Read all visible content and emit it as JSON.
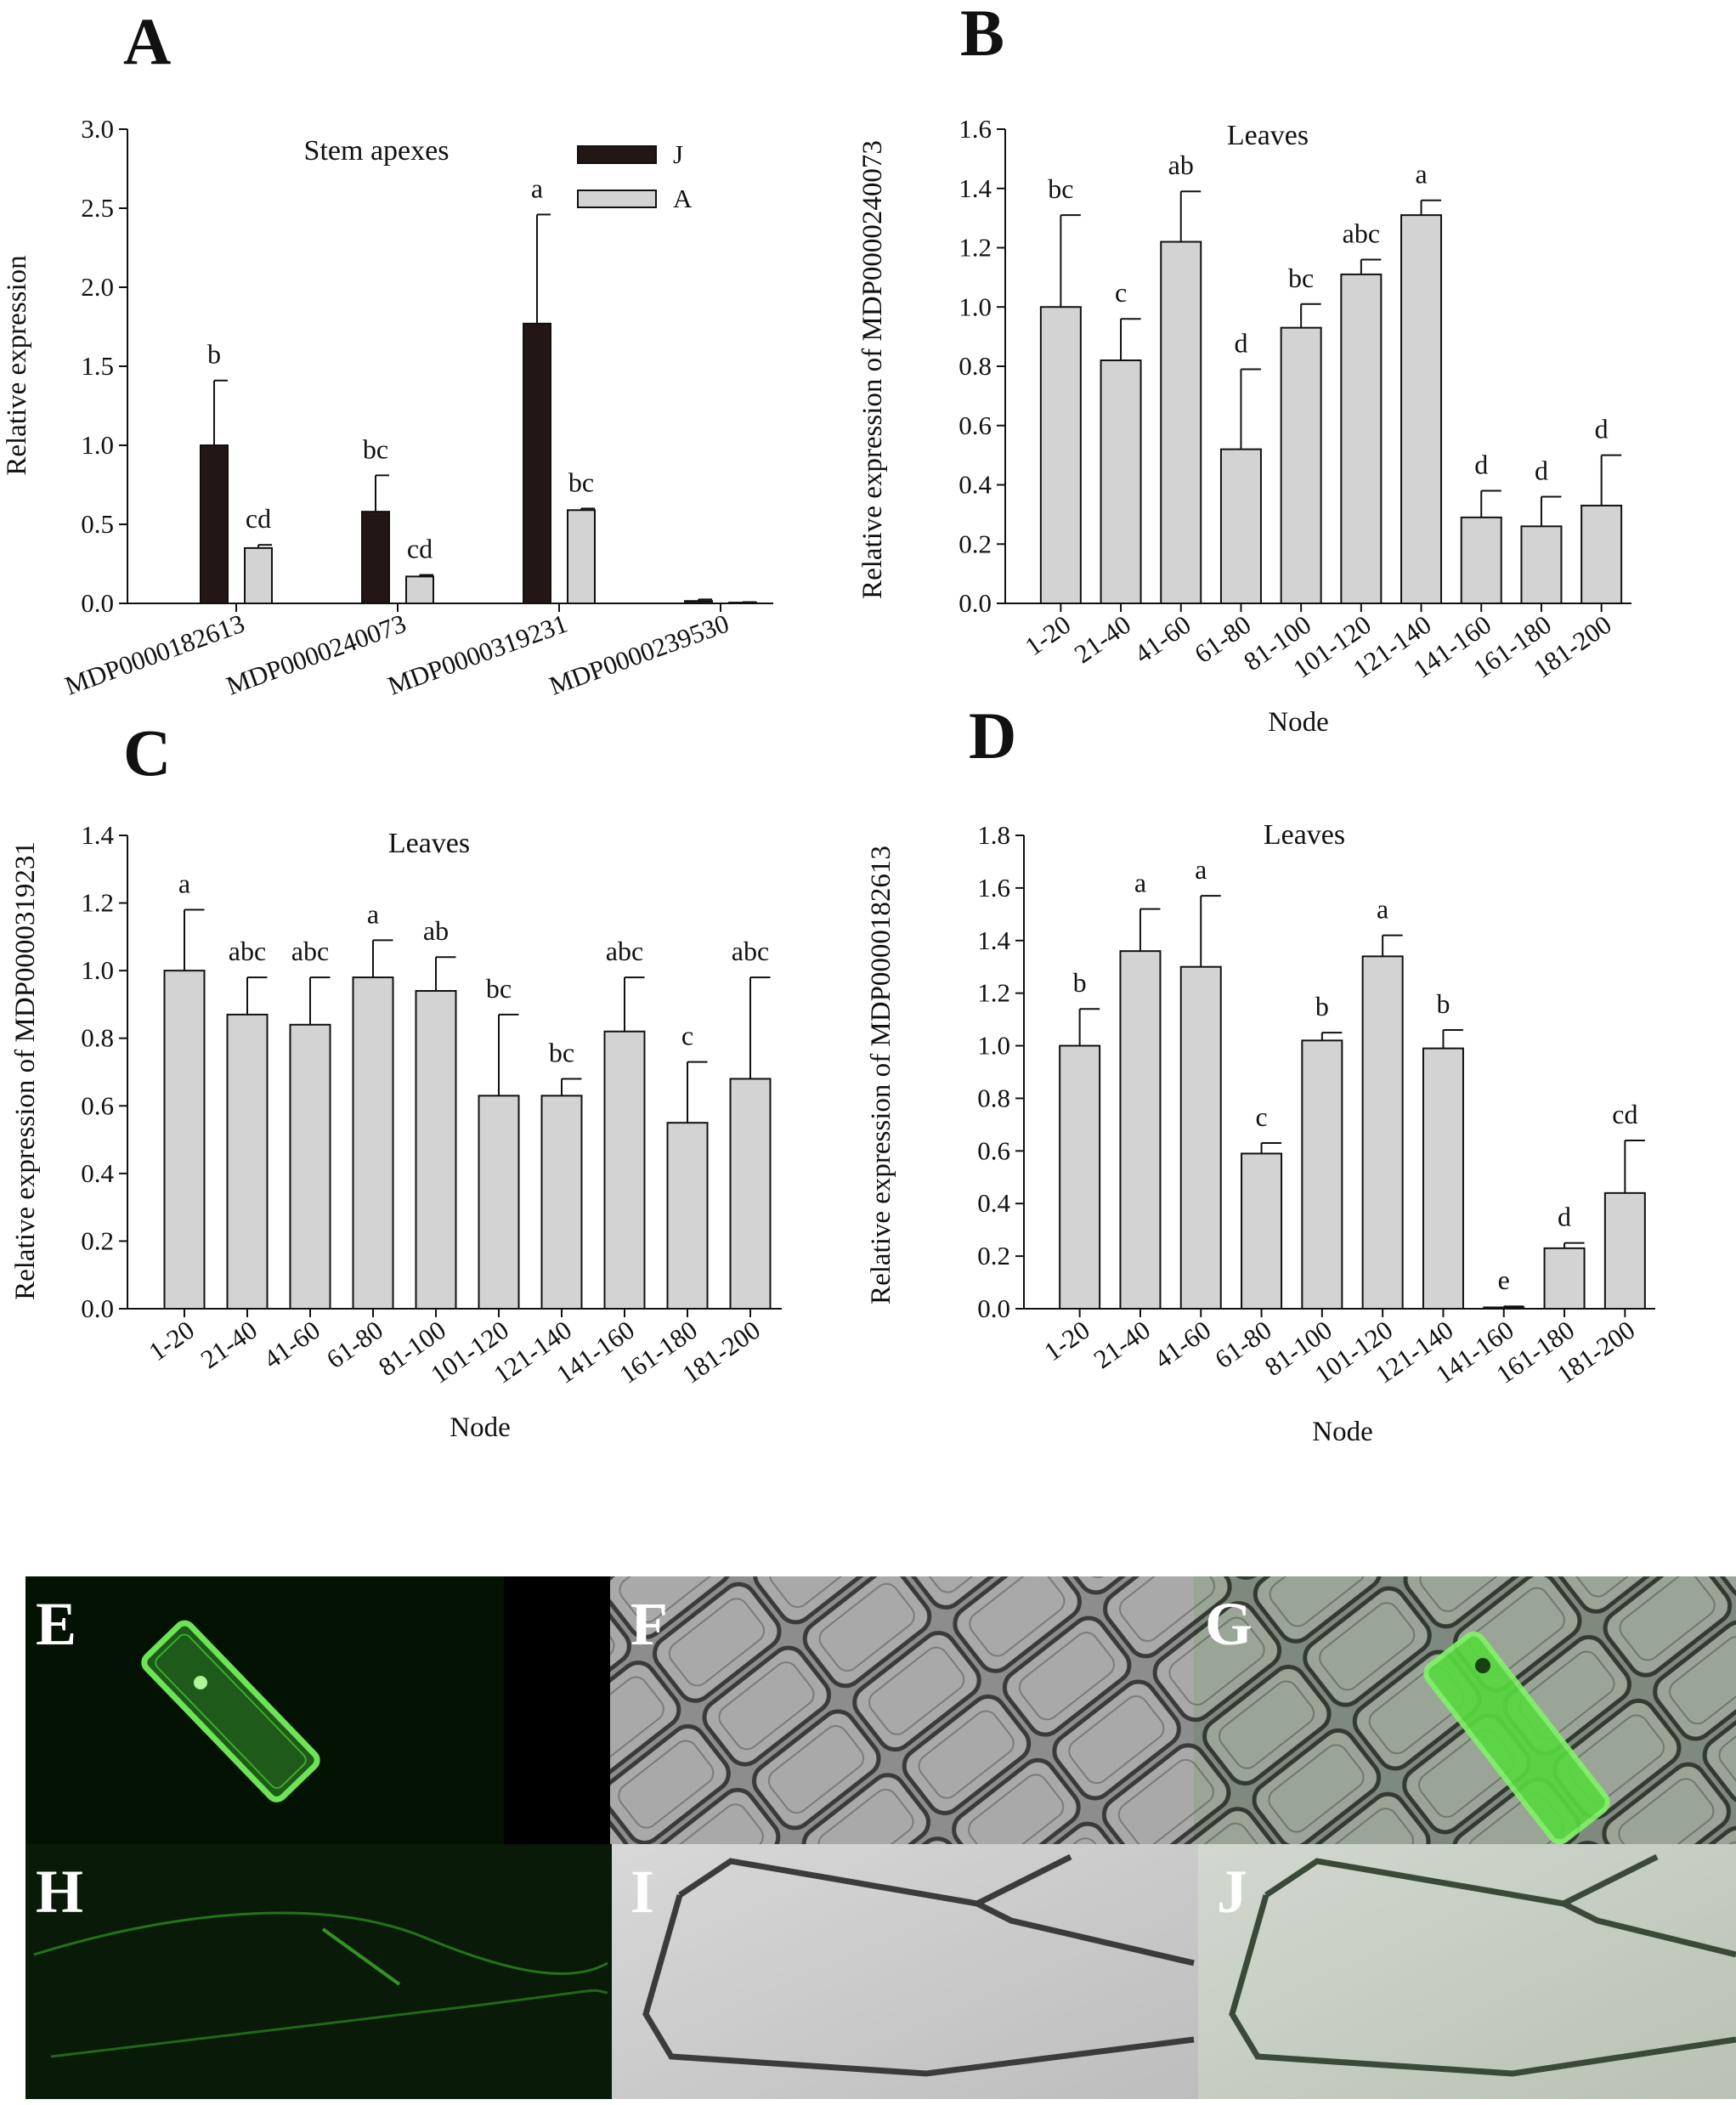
{
  "figure": {
    "panel_labels": [
      "A",
      "B",
      "C",
      "D"
    ],
    "micrograph_labels": [
      "E",
      "F",
      "G",
      "H",
      "I",
      "J"
    ]
  },
  "colors": {
    "bar_juvenile": "#221714",
    "bar_adult": "#d3d3d3",
    "bar_leaves": "#d3d3d3",
    "axis": "#111111",
    "gfp_green": "#4fd13a"
  },
  "chart_data": [
    {
      "panel": "A",
      "type": "bar",
      "title": "Stem apexes",
      "xlabel": "",
      "ylabel": "Relative expression",
      "ylim": [
        0,
        3.0
      ],
      "yticks": [
        "0.0",
        "0.5",
        "1.0",
        "1.5",
        "2.0",
        "2.5",
        "3.0"
      ],
      "categories": [
        "MDP0000182613",
        "MDP0000240073",
        "MDP0000319231",
        "MDP0000239530"
      ],
      "legend_position": "top-right",
      "series": [
        {
          "name": "J",
          "values": [
            1.0,
            0.58,
            1.77,
            0.015
          ],
          "errors": [
            0.41,
            0.23,
            0.69,
            0.01
          ],
          "letters": [
            "b",
            "bc",
            "a",
            ""
          ]
        },
        {
          "name": "A",
          "values": [
            0.35,
            0.17,
            0.59,
            0.005
          ],
          "errors": [
            0.02,
            0.01,
            0.01,
            0.003
          ],
          "letters": [
            "cd",
            "cd",
            "bc",
            ""
          ]
        }
      ]
    },
    {
      "panel": "B",
      "type": "bar",
      "title": "Leaves",
      "xlabel": "Node",
      "ylabel": "Relative expression of MDP0000240073",
      "ylim": [
        0,
        1.6
      ],
      "yticks": [
        "0.0",
        "0.2",
        "0.4",
        "0.6",
        "0.8",
        "1.0",
        "1.2",
        "1.4",
        "1.6"
      ],
      "categories": [
        "1-20",
        "21-40",
        "41-60",
        "61-80",
        "81-100",
        "101-120",
        "121-140",
        "141-160",
        "161-180",
        "181-200"
      ],
      "values": [
        1.0,
        0.82,
        1.22,
        0.52,
        0.93,
        1.11,
        1.31,
        0.29,
        0.26,
        0.33
      ],
      "errors": [
        0.31,
        0.14,
        0.17,
        0.27,
        0.08,
        0.05,
        0.05,
        0.09,
        0.1,
        0.17
      ],
      "letters": [
        "bc",
        "c",
        "ab",
        "d",
        "bc",
        "abc",
        "a",
        "d",
        "d",
        "d"
      ]
    },
    {
      "panel": "C",
      "type": "bar",
      "title": "Leaves",
      "xlabel": "Node",
      "ylabel": "Relative expression of MDP0000319231",
      "ylim": [
        0,
        1.4
      ],
      "yticks": [
        "0.0",
        "0.2",
        "0.4",
        "0.6",
        "0.8",
        "1.0",
        "1.2",
        "1.4"
      ],
      "categories": [
        "1-20",
        "21-40",
        "41-60",
        "61-80",
        "81-100",
        "101-120",
        "121-140",
        "141-160",
        "161-180",
        "181-200"
      ],
      "values": [
        1.0,
        0.87,
        0.84,
        0.98,
        0.94,
        0.63,
        0.63,
        0.82,
        0.55,
        0.68
      ],
      "errors": [
        0.18,
        0.11,
        0.14,
        0.11,
        0.1,
        0.24,
        0.05,
        0.16,
        0.18,
        0.3
      ],
      "letters": [
        "a",
        "abc",
        "abc",
        "a",
        "ab",
        "bc",
        "bc",
        "abc",
        "c",
        "abc"
      ]
    },
    {
      "panel": "D",
      "type": "bar",
      "title": "Leaves",
      "xlabel": "Node",
      "ylabel": "Relative expression of MDP0000182613",
      "ylim": [
        0,
        1.8
      ],
      "yticks": [
        "0.0",
        "0.2",
        "0.4",
        "0.6",
        "0.8",
        "1.0",
        "1.2",
        "1.4",
        "1.6",
        "1.8"
      ],
      "categories": [
        "1-20",
        "21-40",
        "41-60",
        "61-80",
        "81-100",
        "101-120",
        "121-140",
        "141-160",
        "161-180",
        "181-200"
      ],
      "values": [
        1.0,
        1.36,
        1.3,
        0.59,
        1.02,
        1.34,
        0.99,
        0.005,
        0.23,
        0.44
      ],
      "errors": [
        0.14,
        0.16,
        0.27,
        0.04,
        0.03,
        0.08,
        0.07,
        0.004,
        0.02,
        0.2
      ],
      "letters": [
        "b",
        "a",
        "a",
        "c",
        "b",
        "a",
        "b",
        "e",
        "d",
        "cd"
      ]
    }
  ]
}
